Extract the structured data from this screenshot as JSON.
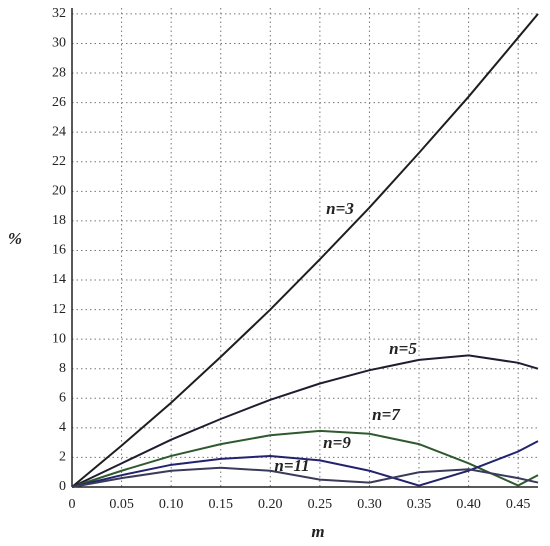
{
  "chart_data": {
    "type": "line",
    "x_label": "m",
    "y_label": "%",
    "x": [
      0,
      0.05,
      0.1,
      0.15,
      0.2,
      0.25,
      0.3,
      0.35,
      0.4,
      0.45,
      0.47
    ],
    "series": [
      {
        "name": "n=3",
        "color": "#1e1e1e",
        "values": [
          0,
          2.8,
          5.7,
          8.8,
          12.0,
          15.4,
          18.9,
          22.6,
          26.4,
          30.4,
          32.0
        ]
      },
      {
        "name": "n=5",
        "color": "#1e1e30",
        "values": [
          0,
          1.6,
          3.2,
          4.6,
          5.9,
          7.0,
          7.9,
          8.6,
          8.9,
          8.4,
          8.0
        ]
      },
      {
        "name": "n=7",
        "color": "#2f5a2f",
        "values": [
          0,
          1.1,
          2.1,
          2.9,
          3.5,
          3.8,
          3.6,
          2.9,
          1.6,
          0.1,
          0.8
        ]
      },
      {
        "name": "n=9",
        "color": "#22226e",
        "values": [
          0,
          0.8,
          1.5,
          1.9,
          2.1,
          1.8,
          1.1,
          0.1,
          1.1,
          2.4,
          3.1
        ]
      },
      {
        "name": "n=11",
        "color": "#3a3a5a",
        "values": [
          0,
          0.6,
          1.1,
          1.3,
          1.1,
          0.5,
          0.3,
          1.0,
          1.2,
          0.6,
          0.3
        ]
      }
    ],
    "xlim": [
      0,
      0.47
    ],
    "xticks": [
      0,
      0.05,
      {
        "value": 0.1,
        "label": "0.10"
      },
      0.15,
      {
        "value": 0.2,
        "label": "0.20"
      },
      0.25,
      {
        "value": 0.3,
        "label": "0.30"
      },
      0.35,
      {
        "value": 0.4,
        "label": "0.40"
      },
      0.45
    ],
    "ylim": [
      0,
      32.4
    ],
    "yticks": [
      0,
      2,
      4,
      6,
      8,
      10,
      12,
      14,
      16,
      18,
      20,
      22,
      24,
      26,
      28,
      30,
      32
    ],
    "grid": true
  }
}
